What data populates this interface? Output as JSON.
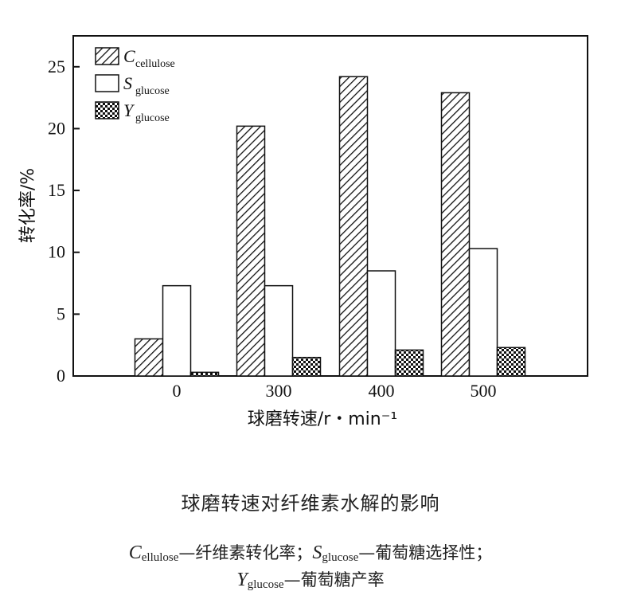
{
  "chart_data": {
    "type": "bar",
    "categories": [
      "0",
      "300",
      "400",
      "500"
    ],
    "series": [
      {
        "name": "Ccellulose",
        "name_main": "C",
        "name_sub": "cellulose",
        "pattern": "diagonal-hatch",
        "values": [
          3.0,
          20.2,
          24.2,
          22.9
        ]
      },
      {
        "name": "Sglucose",
        "name_main": "S",
        "name_sub": "glucose",
        "pattern": "white",
        "values": [
          7.3,
          7.3,
          8.5,
          10.3
        ]
      },
      {
        "name": "Yglucose",
        "name_main": "Y",
        "name_sub": "glucose",
        "pattern": "crosshatch",
        "values": [
          0.3,
          1.5,
          2.1,
          2.3
        ]
      }
    ],
    "xlabel": "球磨转速/r・min⁻¹",
    "ylabel": "转化率/%",
    "yticks": [
      "0",
      "5",
      "10",
      "15",
      "20",
      "25"
    ],
    "ylim": [
      0,
      27.5
    ],
    "legend_position": "top-left",
    "grid": false
  },
  "caption": {
    "title": "球磨转速对纤维素水解的影响",
    "notes": [
      {
        "main": "C",
        "sub": "ellulose",
        "text": "—纤维素转化率；"
      },
      {
        "main": "S",
        "sub": "glucose",
        "text": "—葡萄糖选择性；"
      },
      {
        "main": "Y",
        "sub": "glucose",
        "text": "—葡萄糖产率"
      }
    ]
  }
}
